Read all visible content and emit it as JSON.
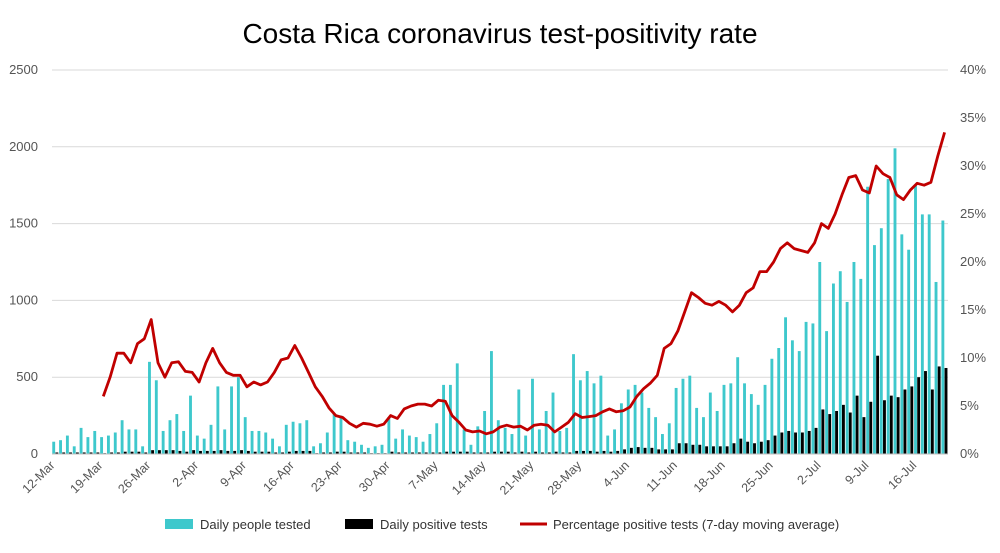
{
  "chart_data": {
    "type": "bar",
    "title": "Costa Rica coronavirus test-positivity rate",
    "xlabel": "",
    "ylabel": "",
    "ylim": [
      0,
      2500
    ],
    "y2lim": [
      0,
      40
    ],
    "yticks": [
      "0",
      "500",
      "1000",
      "1500",
      "2000",
      "2500"
    ],
    "y2ticks": [
      "0%",
      "5%",
      "10%",
      "15%",
      "20%",
      "25%",
      "30%",
      "35%",
      "40%"
    ],
    "xticks": [
      {
        "label": "12-Mar",
        "index": 0
      },
      {
        "label": "19-Mar",
        "index": 7
      },
      {
        "label": "26-Mar",
        "index": 14
      },
      {
        "label": "2-Apr",
        "index": 21
      },
      {
        "label": "9-Apr",
        "index": 28
      },
      {
        "label": "16-Apr",
        "index": 35
      },
      {
        "label": "23-Apr",
        "index": 42
      },
      {
        "label": "30-Apr",
        "index": 49
      },
      {
        "label": "7-May",
        "index": 56
      },
      {
        "label": "14-May",
        "index": 63
      },
      {
        "label": "21-May",
        "index": 70
      },
      {
        "label": "28-May",
        "index": 77
      },
      {
        "label": "4-Jun",
        "index": 84
      },
      {
        "label": "11-Jun",
        "index": 91
      },
      {
        "label": "18-Jun",
        "index": 98
      },
      {
        "label": "25-Jun",
        "index": 105
      },
      {
        "label": "2-Jul",
        "index": 112
      },
      {
        "label": "9-Jul",
        "index": 119
      },
      {
        "label": "16-Jul",
        "index": 126
      }
    ],
    "legend": {
      "position": "bottom",
      "entries": [
        "Daily people tested",
        "Daily positive tests",
        "Percentage positive tests (7-day moving average)"
      ]
    },
    "colors": {
      "tested": "#3ec8cc",
      "positive": "#000000",
      "rate": "#c00000",
      "grid": "#d9d9d9"
    },
    "series": [
      {
        "name": "Daily people tested",
        "axis": "left",
        "values": [
          80,
          90,
          120,
          50,
          170,
          110,
          150,
          110,
          120,
          140,
          220,
          160,
          160,
          50,
          600,
          480,
          150,
          220,
          260,
          150,
          380,
          120,
          100,
          190,
          440,
          160,
          440,
          500,
          240,
          150,
          150,
          140,
          100,
          50,
          190,
          210,
          200,
          220,
          50,
          70,
          140,
          260,
          250,
          90,
          80,
          60,
          40,
          50,
          60,
          240,
          100,
          160,
          120,
          110,
          80,
          130,
          200,
          450,
          450,
          590,
          160,
          60,
          180,
          280,
          670,
          220,
          170,
          130,
          420,
          120,
          490,
          160,
          280,
          400,
          150,
          170,
          650,
          480,
          540,
          460,
          510,
          120,
          160,
          330,
          420,
          450,
          400,
          300,
          240,
          130,
          200,
          430,
          490,
          510,
          300,
          240,
          400,
          280,
          450,
          460,
          630,
          460,
          390,
          320,
          450,
          620,
          690,
          890,
          740,
          670,
          860,
          850,
          1250,
          800,
          1110,
          1190,
          990,
          1250,
          1140,
          1740,
          1360,
          1470,
          1790,
          1990,
          1430,
          1330,
          1750,
          1560,
          1560,
          1120,
          1520
        ],
        "note": "Estimated from the chart."
      },
      {
        "name": "Daily positive tests",
        "axis": "left",
        "values": [
          10,
          10,
          10,
          10,
          10,
          10,
          10,
          5,
          10,
          10,
          15,
          15,
          15,
          10,
          25,
          25,
          25,
          25,
          20,
          15,
          25,
          20,
          20,
          20,
          25,
          20,
          20,
          25,
          20,
          15,
          15,
          15,
          10,
          10,
          15,
          20,
          20,
          20,
          5,
          10,
          10,
          15,
          15,
          10,
          10,
          10,
          5,
          5,
          5,
          15,
          10,
          10,
          10,
          10,
          10,
          10,
          10,
          15,
          15,
          15,
          15,
          10,
          10,
          10,
          15,
          15,
          15,
          10,
          15,
          10,
          15,
          10,
          10,
          15,
          10,
          10,
          20,
          20,
          20,
          15,
          20,
          15,
          20,
          30,
          40,
          45,
          40,
          40,
          30,
          30,
          30,
          70,
          70,
          60,
          60,
          50,
          50,
          50,
          50,
          70,
          100,
          80,
          70,
          80,
          90,
          120,
          140,
          150,
          140,
          140,
          150,
          170,
          290,
          260,
          280,
          320,
          270,
          380,
          240,
          340,
          640,
          350,
          380,
          370,
          420,
          440,
          500,
          540,
          420,
          570,
          560
        ],
        "note": "Estimated from the chart."
      },
      {
        "name": "Percentage positive tests (7-day moving average)",
        "axis": "right",
        "start_index": 7,
        "values": [
          6,
          8,
          10.5,
          10.5,
          9.5,
          11.5,
          12,
          14,
          9.5,
          8,
          9.5,
          9.6,
          8.6,
          8.5,
          7.5,
          9.5,
          11,
          9.5,
          8.5,
          8.2,
          8.2,
          7,
          7.5,
          7.2,
          7.5,
          8.5,
          9.8,
          10,
          11.3,
          10,
          8.5,
          7,
          6,
          4.8,
          4,
          3.8,
          3.2,
          2.8,
          3.2,
          3.1,
          2.9,
          3.1,
          4,
          3.7,
          4.7,
          5,
          5.2,
          5.2,
          5,
          5.6,
          5.5,
          4,
          3.3,
          2.5,
          2.3,
          2.4,
          2.1,
          2.3,
          2.8,
          3,
          2.8,
          2.9,
          2.5,
          3,
          3.1,
          3,
          2.3,
          2.8,
          3.3,
          4.2,
          3.8,
          3.9,
          4,
          4.4,
          4.7,
          4.4,
          4.5,
          4.9,
          6,
          6.8,
          7.4,
          8.2,
          11,
          11.5,
          12.8,
          14.8,
          16.8,
          16.3,
          15.7,
          15.5,
          15.9,
          15.5,
          14.8,
          15.5,
          16.8,
          17.3,
          19,
          19,
          20,
          21.4,
          22,
          21.4,
          21.2,
          21,
          22,
          24,
          23.5,
          25,
          27,
          28.8,
          29,
          27.5,
          27.2,
          30,
          29.2,
          28.8,
          27,
          26.5,
          27.5,
          28.2,
          28,
          28.3,
          31,
          33.5
        ],
        "note": "Estimated from the chart."
      }
    ]
  }
}
